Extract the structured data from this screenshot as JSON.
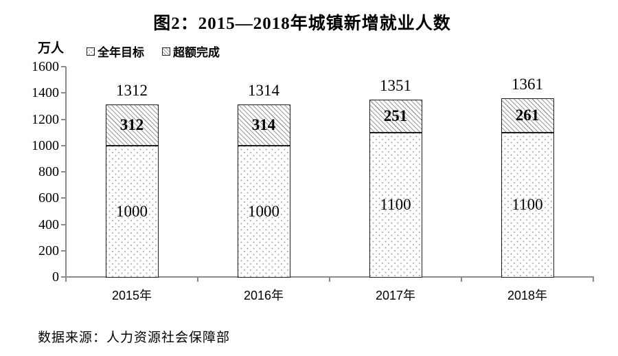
{
  "title": "图2：2015—2018年城镇新增就业人数",
  "y_unit": "万人",
  "legend": [
    {
      "label": "全年目标",
      "pattern": "dots"
    },
    {
      "label": "超额完成",
      "pattern": "hatch"
    }
  ],
  "source": "数据来源：人力资源社会保障部",
  "chart_data": {
    "type": "bar",
    "stacked": true,
    "title": "图2：2015—2018年城镇新增就业人数",
    "ylabel": "万人",
    "categories": [
      "2015年",
      "2016年",
      "2017年",
      "2018年"
    ],
    "series": [
      {
        "name": "全年目标",
        "pattern": "dots",
        "values": [
          1000,
          1000,
          1100,
          1100
        ]
      },
      {
        "name": "超额完成",
        "pattern": "hatch",
        "values": [
          312,
          314,
          251,
          261
        ]
      }
    ],
    "totals": [
      1312,
      1314,
      1351,
      1361
    ],
    "ylim": [
      0,
      1600
    ],
    "yticks": [
      0,
      200,
      400,
      600,
      800,
      1000,
      1200,
      1400,
      1600
    ],
    "grid": false,
    "legend_position": "top-left",
    "colors": {
      "text": "#000000",
      "axis": "#8a8a8a",
      "bar_border": "#1c1c1c",
      "pattern": "#a0a0a0"
    }
  }
}
